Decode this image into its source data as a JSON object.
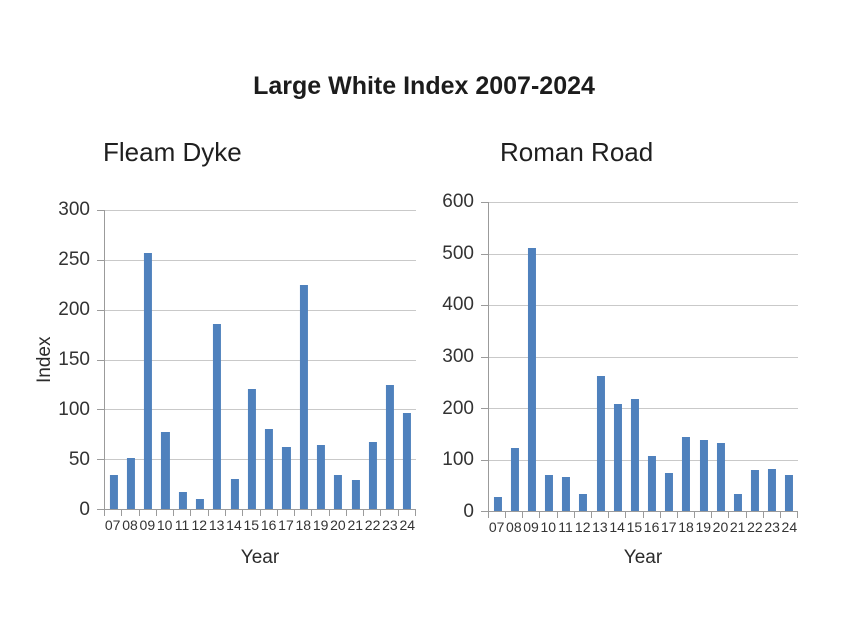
{
  "title": "Large White Index 2007-2024",
  "colors": {
    "bar": "#4F81BD",
    "gridline": "#C9C9C9",
    "axis": "#9B9B9B",
    "text": "#262626"
  },
  "chart_data": [
    {
      "type": "bar",
      "title": "Fleam Dyke",
      "xlabel": "Year",
      "ylabel": "Index",
      "categories": [
        "07",
        "08",
        "09",
        "10",
        "11",
        "12",
        "13",
        "14",
        "15",
        "16",
        "17",
        "18",
        "19",
        "20",
        "21",
        "22",
        "23",
        "24"
      ],
      "values": [
        34,
        51,
        257,
        77,
        17,
        10,
        186,
        30,
        120,
        80,
        62,
        225,
        64,
        34,
        29,
        67,
        124,
        96
      ],
      "ylim": [
        0,
        300
      ],
      "ytick_step": 50,
      "grid": true,
      "legend": "none"
    },
    {
      "type": "bar",
      "title": "Roman Road",
      "xlabel": "Year",
      "ylabel": "",
      "categories": [
        "07",
        "08",
        "09",
        "10",
        "11",
        "12",
        "13",
        "14",
        "15",
        "16",
        "17",
        "18",
        "19",
        "20",
        "21",
        "22",
        "23",
        "24"
      ],
      "values": [
        28,
        122,
        511,
        70,
        66,
        33,
        262,
        207,
        218,
        107,
        74,
        143,
        138,
        133,
        33,
        79,
        82,
        70
      ],
      "ylim": [
        0,
        600
      ],
      "ytick_step": 100,
      "grid": true,
      "legend": "none"
    }
  ]
}
